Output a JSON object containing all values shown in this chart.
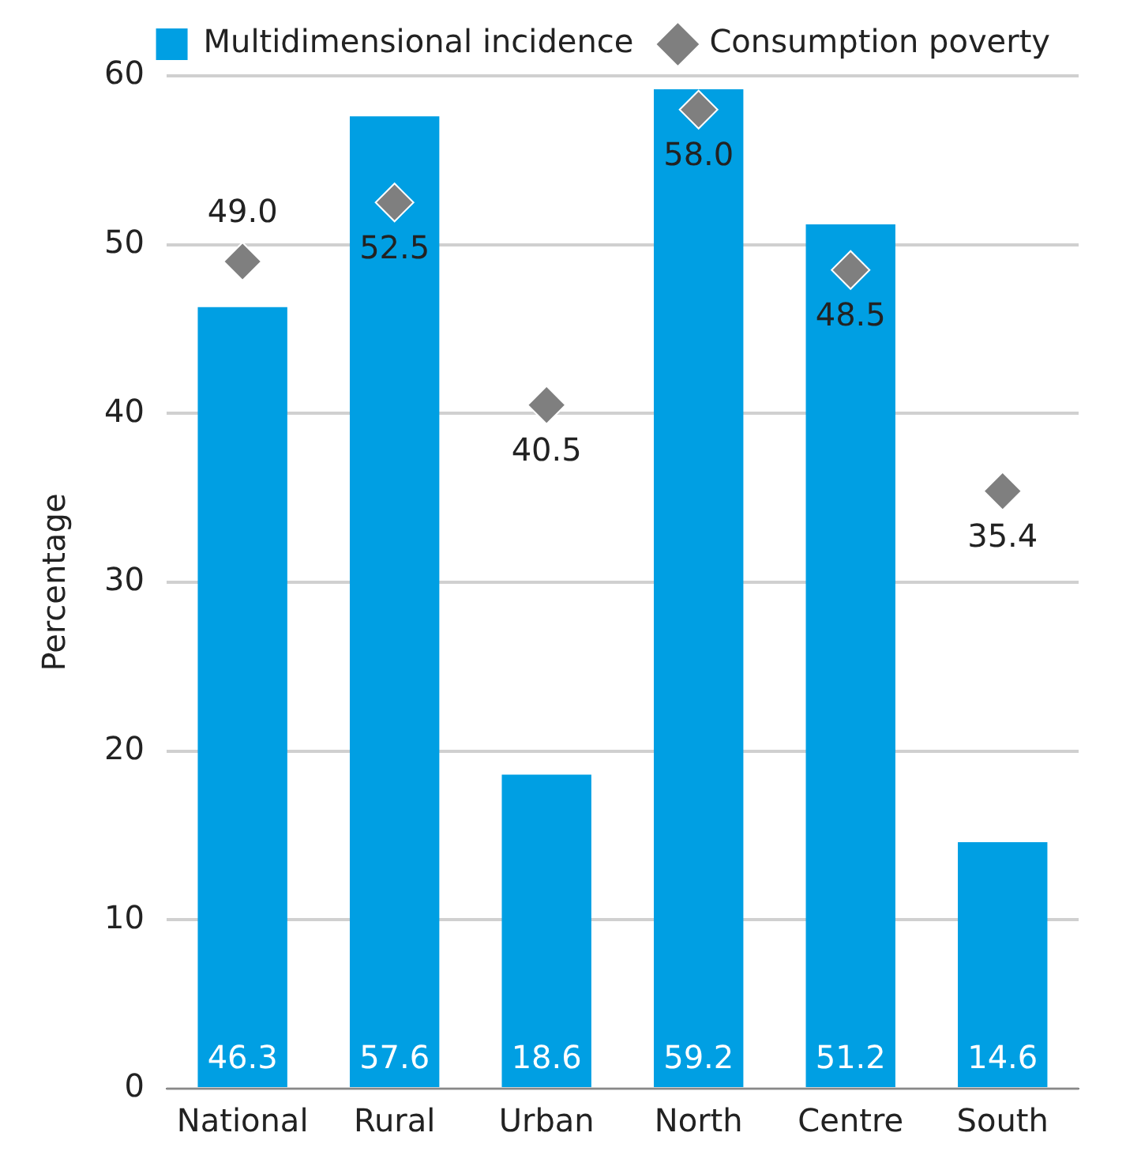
{
  "chart_data": {
    "type": "bar",
    "ylabel": "Percentage",
    "categories": [
      "National",
      "Rural",
      "Urban",
      "North",
      "Centre",
      "South"
    ],
    "series": [
      {
        "name": "Multidimensional incidence",
        "color": "#009fe3",
        "values": [
          46.3,
          57.6,
          18.6,
          59.2,
          51.2,
          14.6
        ],
        "value_labels": [
          "46.3",
          "57.6",
          "18.6",
          "59.2",
          "51.2",
          "14.6"
        ]
      },
      {
        "name": "Consumption poverty",
        "type": "scatter",
        "color": "#7f7f7f",
        "marker": "diamond",
        "values": [
          49.0,
          52.5,
          40.5,
          58.0,
          48.5,
          35.4
        ],
        "value_labels": [
          "49.0",
          "52.5",
          "40.5",
          "58.0",
          "48.5",
          "35.4"
        ]
      }
    ],
    "ylim": [
      0,
      60
    ],
    "yticks": [
      0,
      10,
      20,
      30,
      40,
      50,
      60
    ],
    "grid": "y",
    "legend": "top"
  }
}
